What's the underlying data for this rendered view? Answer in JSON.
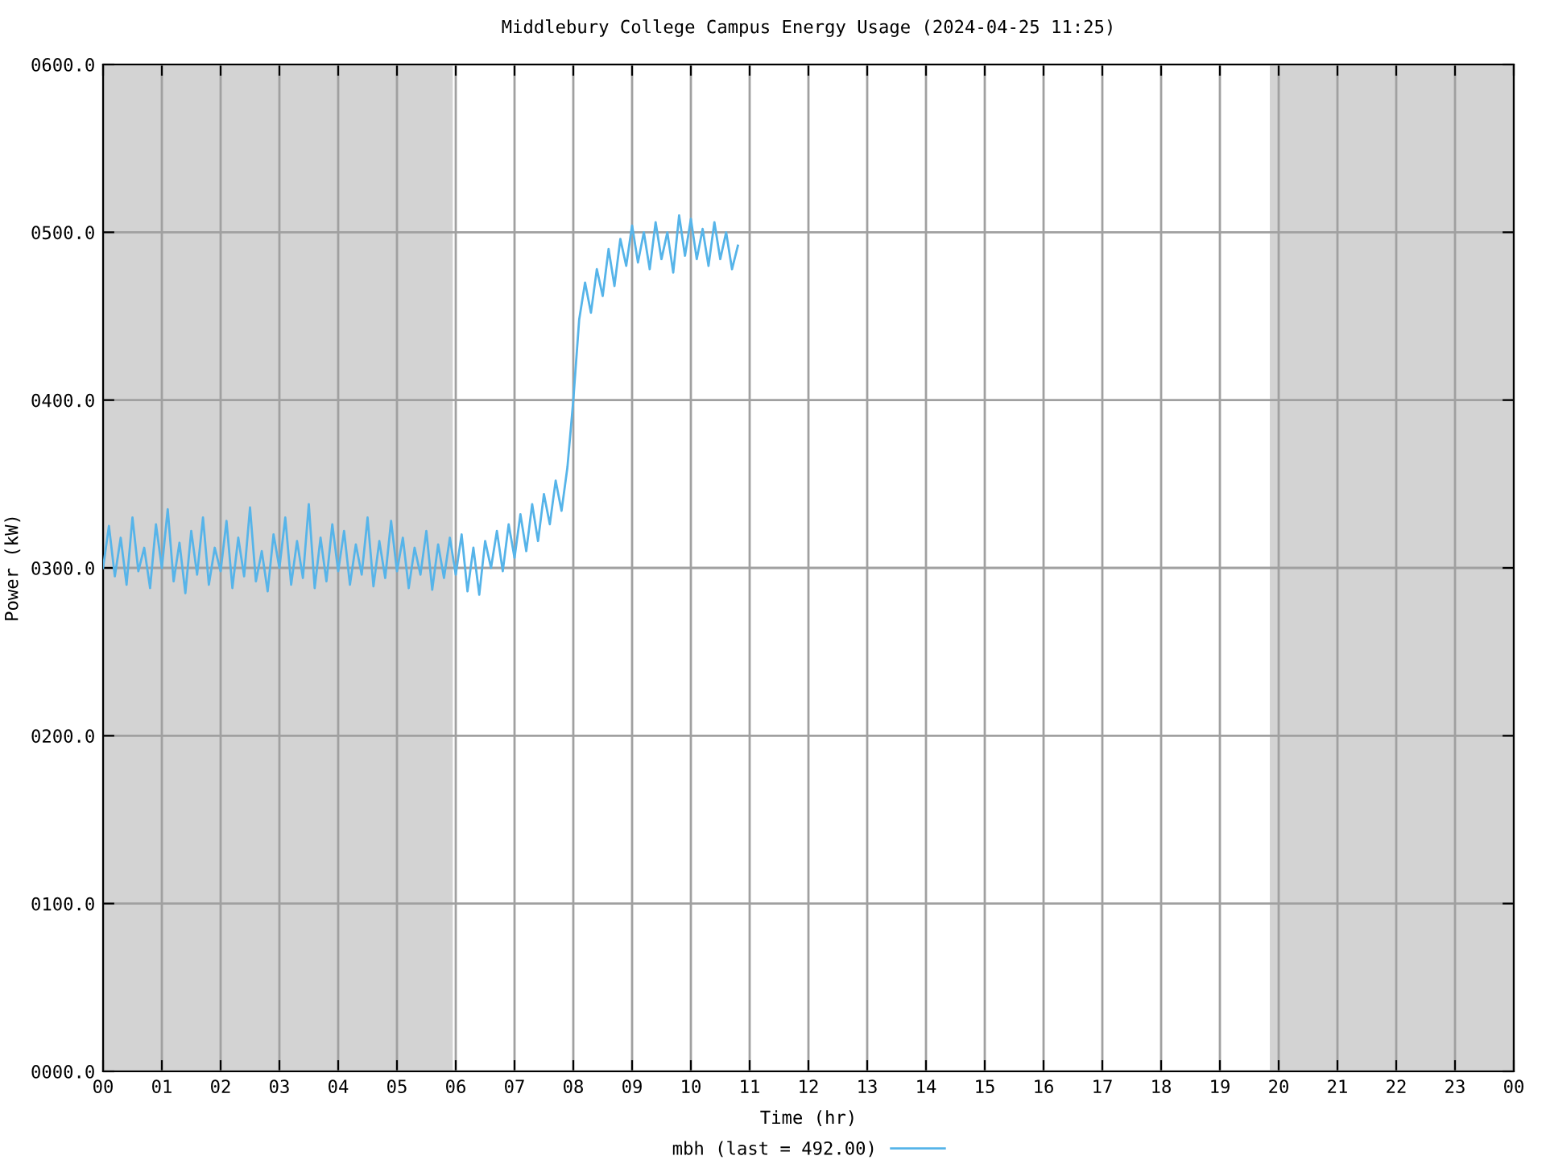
{
  "chart_data": {
    "type": "line",
    "title": "Middlebury College Campus Energy Usage (2024-04-25 11:25)",
    "xlabel": "Time (hr)",
    "ylabel": "Power (kW)",
    "xlim": [
      0,
      24
    ],
    "ylim": [
      0,
      600
    ],
    "xticks": [
      {
        "value": 0,
        "label": "00"
      },
      {
        "value": 1,
        "label": "01"
      },
      {
        "value": 2,
        "label": "02"
      },
      {
        "value": 3,
        "label": "03"
      },
      {
        "value": 4,
        "label": "04"
      },
      {
        "value": 5,
        "label": "05"
      },
      {
        "value": 6,
        "label": "06"
      },
      {
        "value": 7,
        "label": "07"
      },
      {
        "value": 8,
        "label": "08"
      },
      {
        "value": 9,
        "label": "09"
      },
      {
        "value": 10,
        "label": "10"
      },
      {
        "value": 11,
        "label": "11"
      },
      {
        "value": 12,
        "label": "12"
      },
      {
        "value": 13,
        "label": "13"
      },
      {
        "value": 14,
        "label": "14"
      },
      {
        "value": 15,
        "label": "15"
      },
      {
        "value": 16,
        "label": "16"
      },
      {
        "value": 17,
        "label": "17"
      },
      {
        "value": 18,
        "label": "18"
      },
      {
        "value": 19,
        "label": "19"
      },
      {
        "value": 20,
        "label": "20"
      },
      {
        "value": 21,
        "label": "21"
      },
      {
        "value": 22,
        "label": "22"
      },
      {
        "value": 23,
        "label": "23"
      },
      {
        "value": 24,
        "label": "00"
      }
    ],
    "yticks": [
      {
        "value": 0,
        "label": "0000.0"
      },
      {
        "value": 100,
        "label": "0100.0"
      },
      {
        "value": 200,
        "label": "0200.0"
      },
      {
        "value": 300,
        "label": "0300.0"
      },
      {
        "value": 400,
        "label": "0400.0"
      },
      {
        "value": 500,
        "label": "0500.0"
      },
      {
        "value": 600,
        "label": "0600.0"
      }
    ],
    "grid": true,
    "legend": "bottom",
    "marker": "none",
    "line_style": "solid",
    "bands": [
      {
        "axis": "x",
        "from": 0,
        "to": 5.95,
        "color": "#d3d3d3"
      },
      {
        "axis": "x",
        "from": 19.85,
        "to": 24,
        "color": "#d3d3d3"
      }
    ],
    "series": [
      {
        "name": "mbh (last = 492.00)",
        "color": "#56b4e9",
        "x": [
          0.0,
          0.1,
          0.2,
          0.3,
          0.4,
          0.5,
          0.6,
          0.7,
          0.8,
          0.9,
          1.0,
          1.1,
          1.2,
          1.3,
          1.4,
          1.5,
          1.6,
          1.7,
          1.8,
          1.9,
          2.0,
          2.1,
          2.2,
          2.3,
          2.4,
          2.5,
          2.6,
          2.7,
          2.8,
          2.9,
          3.0,
          3.1,
          3.2,
          3.3,
          3.4,
          3.5,
          3.6,
          3.7,
          3.8,
          3.9,
          4.0,
          4.1,
          4.2,
          4.3,
          4.4,
          4.5,
          4.6,
          4.7,
          4.8,
          4.9,
          5.0,
          5.1,
          5.2,
          5.3,
          5.4,
          5.5,
          5.6,
          5.7,
          5.8,
          5.9,
          6.0,
          6.1,
          6.2,
          6.3,
          6.4,
          6.5,
          6.6,
          6.7,
          6.8,
          6.9,
          7.0,
          7.1,
          7.2,
          7.3,
          7.4,
          7.5,
          7.6,
          7.7,
          7.8,
          7.9,
          8.0,
          8.1,
          8.2,
          8.3,
          8.4,
          8.5,
          8.6,
          8.7,
          8.8,
          8.9,
          9.0,
          9.1,
          9.2,
          9.3,
          9.4,
          9.5,
          9.6,
          9.7,
          9.8,
          9.9,
          10.0,
          10.1,
          10.2,
          10.3,
          10.4,
          10.5,
          10.6,
          10.7,
          10.8
        ],
        "values": [
          300,
          325,
          295,
          318,
          290,
          330,
          298,
          312,
          288,
          326,
          300,
          335,
          292,
          315,
          285,
          322,
          296,
          330,
          290,
          312,
          298,
          328,
          288,
          318,
          295,
          336,
          292,
          310,
          286,
          320,
          300,
          330,
          290,
          316,
          294,
          338,
          288,
          318,
          292,
          326,
          298,
          322,
          290,
          314,
          296,
          330,
          289,
          316,
          294,
          328,
          298,
          318,
          288,
          312,
          296,
          322,
          287,
          314,
          294,
          318,
          296,
          320,
          286,
          312,
          284,
          316,
          300,
          322,
          298,
          326,
          306,
          332,
          310,
          338,
          316,
          344,
          326,
          352,
          334,
          360,
          400,
          448,
          470,
          452,
          478,
          462,
          490,
          468,
          496,
          480,
          504,
          482,
          500,
          478,
          506,
          484,
          500,
          476,
          510,
          486,
          508,
          484,
          502,
          480,
          506,
          484,
          500,
          478,
          492
        ]
      }
    ]
  }
}
